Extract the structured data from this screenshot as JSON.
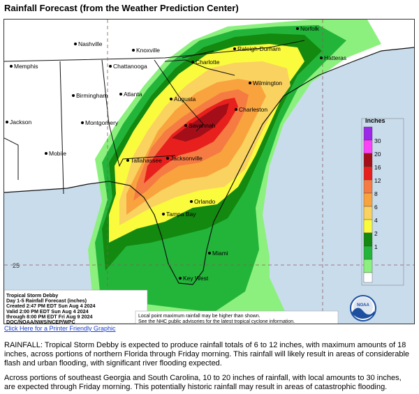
{
  "page": {
    "title": "Rainfall Forecast (from the Weather Prediction Center)",
    "printer_link": "Click Here for a Printer Friendly Graphic"
  },
  "map": {
    "cities": [
      "Norfolk",
      "Nashville",
      "Knoxville",
      "Raleigh-Durham",
      "Hatteras",
      "Memphis",
      "Chattanooga",
      "Charlotte",
      "Wilmington",
      "Birmingham",
      "Atlanta",
      "Augusta",
      "Charleston",
      "Montgomery",
      "Jackson",
      "Savannah",
      "Jacksonville",
      "Mobile",
      "Tallahassee",
      "Orlando",
      "Tampa Bay",
      "Miami",
      "Key West"
    ],
    "latitude_label": "25",
    "legend": {
      "title": "Inches",
      "values": [
        "30",
        "20",
        "16",
        "12",
        "8",
        "6",
        "4",
        "2",
        "1"
      ],
      "colors": [
        "#ffffff",
        "#8cf07e",
        "#23b53a",
        "#13890f",
        "#fbfb3e",
        "#fad260",
        "#f9a33e",
        "#f57b43",
        "#e7201d",
        "#a40e19",
        "#fb42f6",
        "#9c27e6"
      ]
    },
    "info_box": {
      "lines": [
        "Tropical Storm Debby",
        "Day 1-5 Rainfall Forecast (inches)",
        "Created 2:47 PM EDT Sun Aug 4 2024",
        "Valid 2:00 PM EDT Sun Aug 4 2024",
        "through 8:00 PM EDT Fri Aug 9 2024",
        "DOC/NOAA/NWS/NCEP/WPC"
      ]
    },
    "disclaimer": [
      "Local point maximum rainfall may be higher than shown.",
      "See the NHC public advisories for the latest tropical cyclone information."
    ],
    "noaa_logo_text": "NOAA"
  },
  "summary": {
    "paragraph1": "RAINFALL: Tropical Storm Debby is expected to produce rainfall totals of 6 to 12 inches, with maximum amounts of 18 inches, across portions of northern Florida through Friday morning. This rainfall will likely result in areas of considerable flash and urban flooding, with significant river flooding expected.",
    "paragraph2": "Across portions of southeast Georgia and South Carolina, 10 to 20 inches of rainfall, with local amounts to 30 inches, are expected through Friday morning. This potentially historic rainfall may result in areas of catastrophic flooding."
  }
}
